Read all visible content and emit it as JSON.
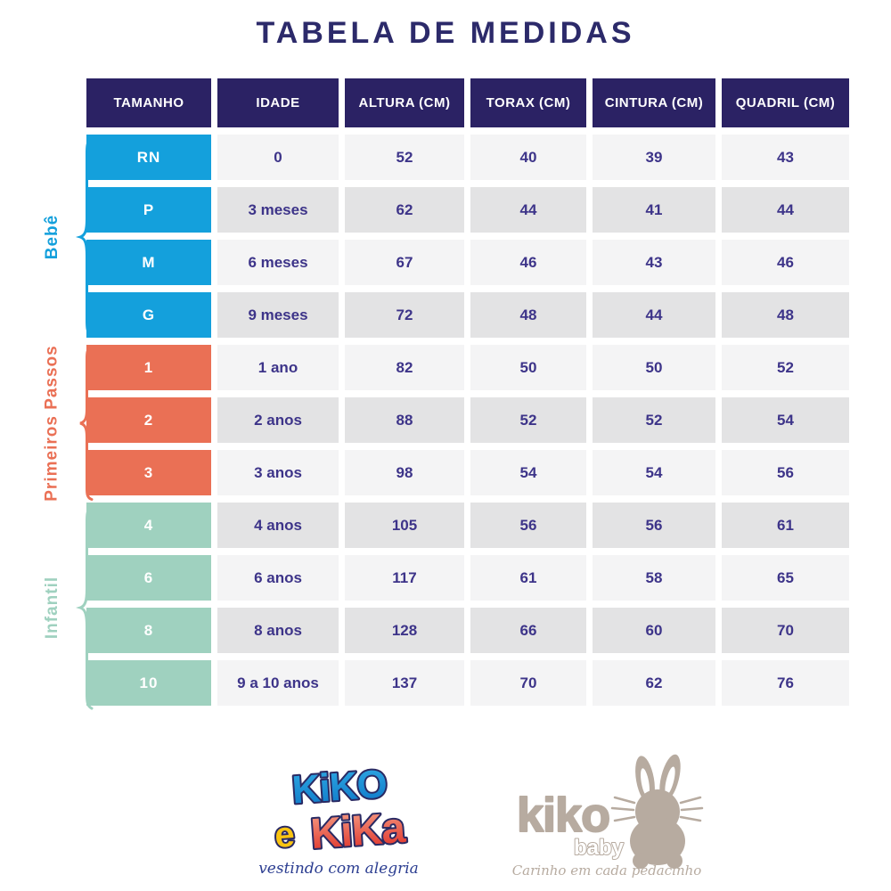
{
  "title": "TABELA DE MEDIDAS",
  "table": {
    "headers": [
      "TAMANHO",
      "IDADE",
      "ALTURA (CM)",
      "TORAX (CM)",
      "CINTURA (CM)",
      "QUADRIL (CM)"
    ],
    "groups": [
      {
        "name": "Bebê",
        "color": "#14a0dc",
        "rows": [
          {
            "size": "RN",
            "cells": [
              "0",
              "52",
              "40",
              "39",
              "43"
            ]
          },
          {
            "size": "P",
            "cells": [
              "3 meses",
              "62",
              "44",
              "41",
              "44"
            ]
          },
          {
            "size": "M",
            "cells": [
              "6 meses",
              "67",
              "46",
              "43",
              "46"
            ]
          },
          {
            "size": "G",
            "cells": [
              "9 meses",
              "72",
              "48",
              "44",
              "48"
            ]
          }
        ]
      },
      {
        "name": "Primeiros Passos",
        "color": "#ea7055",
        "rows": [
          {
            "size": "1",
            "cells": [
              "1 ano",
              "82",
              "50",
              "50",
              "52"
            ]
          },
          {
            "size": "2",
            "cells": [
              "2 anos",
              "88",
              "52",
              "52",
              "54"
            ]
          },
          {
            "size": "3",
            "cells": [
              "3 anos",
              "98",
              "54",
              "54",
              "56"
            ]
          }
        ]
      },
      {
        "name": "Infantil",
        "color": "#9fd1bf",
        "rows": [
          {
            "size": "4",
            "cells": [
              "4 anos",
              "105",
              "56",
              "56",
              "61"
            ]
          },
          {
            "size": "6",
            "cells": [
              "6 anos",
              "117",
              "61",
              "58",
              "65"
            ]
          },
          {
            "size": "8",
            "cells": [
              "8 anos",
              "128",
              "66",
              "60",
              "70"
            ]
          },
          {
            "size": "10",
            "cells": [
              "9 a 10 anos",
              "137",
              "70",
              "62",
              "76"
            ]
          }
        ]
      }
    ]
  },
  "chart_data": {
    "type": "table",
    "title": "TABELA DE MEDIDAS",
    "columns": [
      "TAMANHO",
      "IDADE",
      "ALTURA (CM)",
      "TORAX (CM)",
      "CINTURA (CM)",
      "QUADRIL (CM)"
    ],
    "row_groups": [
      {
        "group": "Bebê",
        "rows": [
          [
            "RN",
            "0",
            52,
            40,
            39,
            43
          ],
          [
            "P",
            "3 meses",
            62,
            44,
            41,
            44
          ],
          [
            "M",
            "6 meses",
            67,
            46,
            43,
            46
          ],
          [
            "G",
            "9 meses",
            72,
            48,
            44,
            48
          ]
        ]
      },
      {
        "group": "Primeiros Passos",
        "rows": [
          [
            "1",
            "1 ano",
            82,
            50,
            50,
            52
          ],
          [
            "2",
            "2 anos",
            88,
            52,
            52,
            54
          ],
          [
            "3",
            "3 anos",
            98,
            54,
            54,
            56
          ]
        ]
      },
      {
        "group": "Infantil",
        "rows": [
          [
            "4",
            "4 anos",
            105,
            56,
            56,
            61
          ],
          [
            "6",
            "6 anos",
            117,
            61,
            58,
            65
          ],
          [
            "8",
            "8 anos",
            128,
            66,
            60,
            70
          ],
          [
            "10",
            "9 a 10 anos",
            137,
            70,
            62,
            76
          ]
        ]
      }
    ]
  },
  "logos": {
    "kiko_e_kika": {
      "line1": "KiKO",
      "e": "e",
      "line2": "KiKa",
      "tagline": "vestindo com alegria"
    },
    "kiko_baby": {
      "name": "kiko",
      "sub": "baby",
      "tagline": "Carinho em cada pedacinho"
    }
  },
  "colors": {
    "title_text": "#2c2a6a",
    "header_bg": "#2b2264",
    "cell_text": "#3d3489",
    "row_light": "#f4f4f5",
    "row_dark": "#e3e3e4",
    "bebe_blue": "#14a0dc",
    "primeiros_passos_coral": "#ea7055",
    "infantil_mint": "#9fd1bf",
    "logo_outline_navy": "#2a2a63",
    "logo_yellow": "#f9c412",
    "logo_blue_top": "#2fa9e3",
    "logo_blue_bottom": "#0e77c8",
    "logo_red_top": "#f5a087",
    "logo_red_bottom": "#de2a22",
    "logo_script_blue": "#2c3e91",
    "kiko_baby_taupe": "#b7aba0"
  }
}
